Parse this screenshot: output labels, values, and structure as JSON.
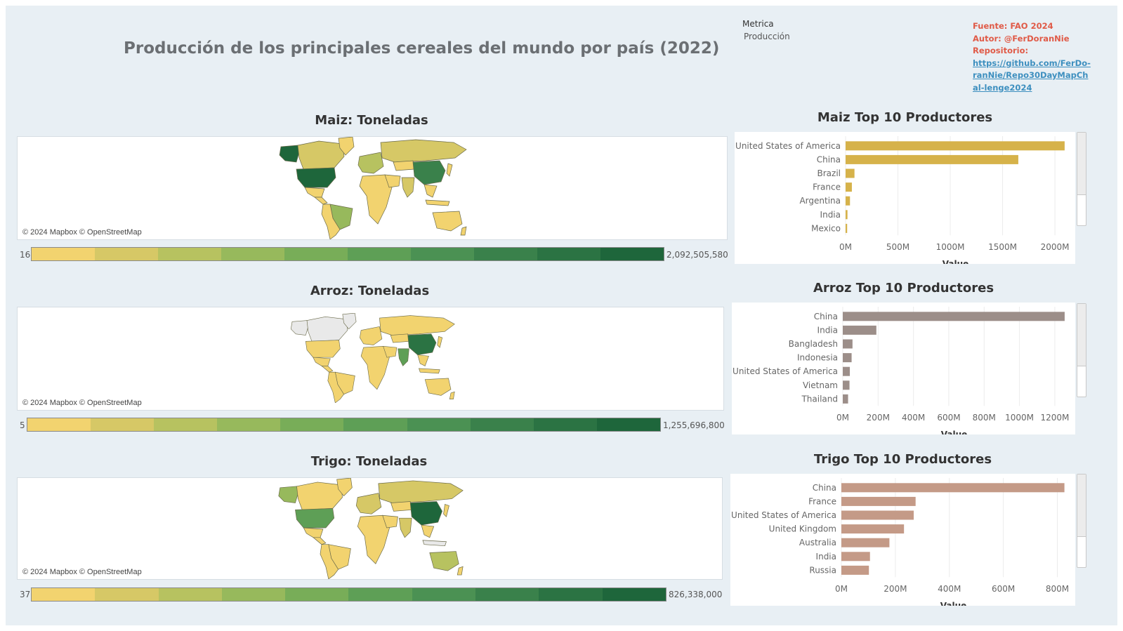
{
  "title": "Producción de los principales cereales del mundo por país (2022)",
  "metric": {
    "label": "Metrica",
    "value": "Producción"
  },
  "source": {
    "fuente": "Fuente: FAO 2024",
    "autor": "Autor: @FerDoranNie",
    "repo_label": "Repositorio:",
    "repo_url": "https://github.com/FerDo-ranNie/Repo30DayMapChal-lenge2024"
  },
  "colors": {
    "ramp": [
      "#f2d36f",
      "#d6c866",
      "#b7c260",
      "#97b95c",
      "#78ad58",
      "#5e9f56",
      "#4b9153",
      "#3a814b",
      "#2b7343",
      "#1e663b"
    ],
    "maiz_bar": "#d6b24a",
    "arroz_bar": "#9c8e89",
    "trigo_bar": "#c49a87",
    "accent_red": "#e05a47",
    "link": "#3d8fbf"
  },
  "maps": [
    {
      "id": "maiz",
      "title": "Maiz: Toneladas",
      "attribution": "© 2024 Mapbox © OpenStreetMap",
      "legend_min": "16",
      "legend_max": "2,092,505,580"
    },
    {
      "id": "arroz",
      "title": "Arroz: Toneladas",
      "attribution": "© 2024 Mapbox © OpenStreetMap",
      "legend_min": "5",
      "legend_max": "1,255,696,800"
    },
    {
      "id": "trigo",
      "title": "Trigo: Toneladas",
      "attribution": "© 2024 Mapbox © OpenStreetMap",
      "legend_min": "37",
      "legend_max": "826,338,000"
    }
  ],
  "chart_data": [
    {
      "type": "bar",
      "orientation": "horizontal",
      "title": "Maiz Top 10 Productores",
      "xlabel": "Value",
      "categories": [
        "United States of America",
        "China",
        "Brazil",
        "France",
        "Argentina",
        "India",
        "Mexico"
      ],
      "values": [
        2092505580,
        1650000000,
        85000000,
        60000000,
        42000000,
        18000000,
        15000000
      ],
      "xlim": [
        0,
        2100000000
      ],
      "ticks": [
        0,
        500000000,
        1000000000,
        1500000000,
        2000000000
      ],
      "tick_labels": [
        "0M",
        "500M",
        "1000M",
        "1500M",
        "2000M"
      ],
      "grid": true
    },
    {
      "type": "bar",
      "orientation": "horizontal",
      "title": "Arroz Top 10 Productores",
      "xlabel": "Value",
      "categories": [
        "China",
        "India",
        "Bangladesh",
        "Indonesia",
        "United States of America",
        "Vietnam",
        "Thailand"
      ],
      "values": [
        1255696800,
        190000000,
        55000000,
        50000000,
        40000000,
        38000000,
        30000000
      ],
      "xlim": [
        0,
        1260000000
      ],
      "ticks": [
        0,
        200000000,
        400000000,
        600000000,
        800000000,
        1000000000,
        1200000000
      ],
      "tick_labels": [
        "0M",
        "200M",
        "400M",
        "600M",
        "800M",
        "1000M",
        "1200M"
      ],
      "grid": true
    },
    {
      "type": "bar",
      "orientation": "horizontal",
      "title": "Trigo Top 10 Productores",
      "xlabel": "Value",
      "categories": [
        "China",
        "France",
        "United States of America",
        "United Kingdom",
        "Australia",
        "India",
        "Russia"
      ],
      "values": [
        826338000,
        275000000,
        268000000,
        232000000,
        178000000,
        106000000,
        102000000
      ],
      "xlim": [
        0,
        830000000
      ],
      "ticks": [
        0,
        200000000,
        400000000,
        600000000,
        800000000
      ],
      "tick_labels": [
        "0M",
        "200M",
        "400M",
        "600M",
        "800M"
      ],
      "grid": true
    }
  ]
}
